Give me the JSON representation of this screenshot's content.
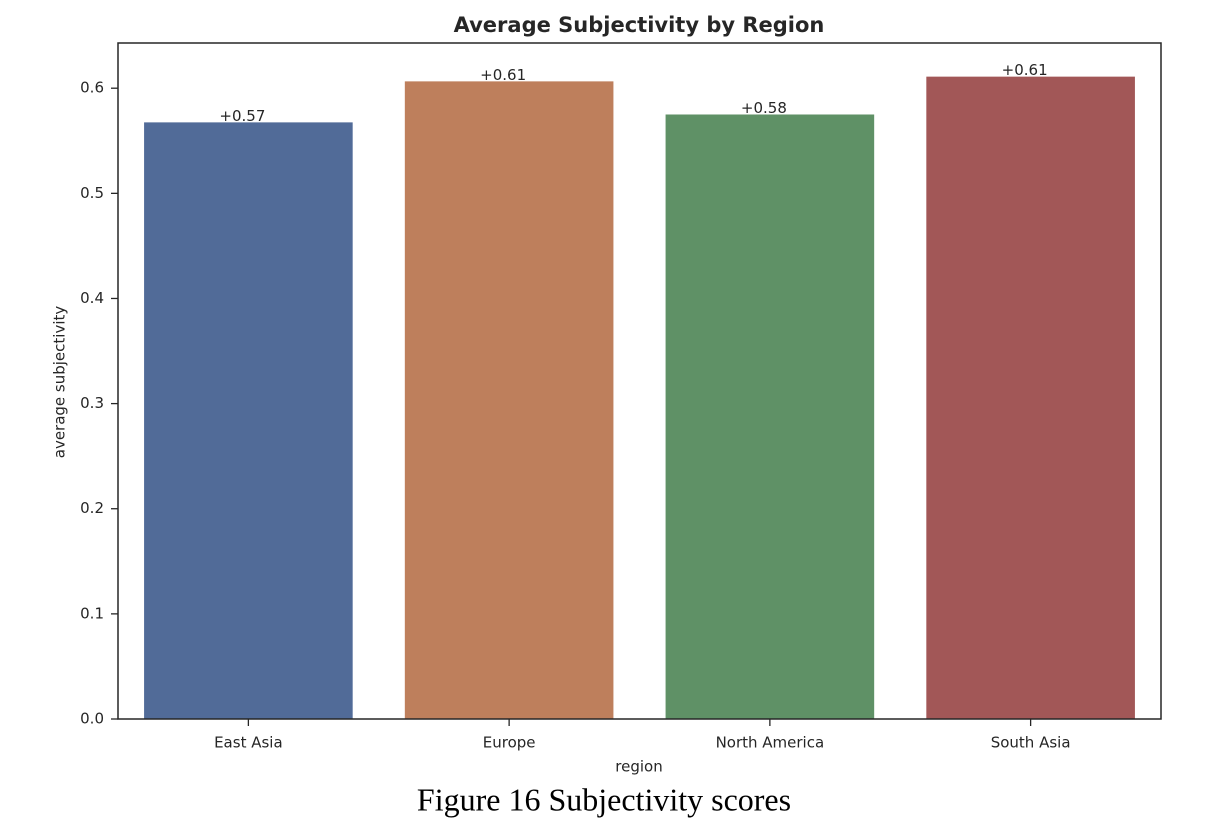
{
  "chart_data": {
    "type": "bar",
    "title": "Average Subjectivity by Region",
    "x_label": "region",
    "y_label": "average subjectivity",
    "categories": [
      "East Asia",
      "Europe",
      "North America",
      "South Asia"
    ],
    "values": [
      0.5675,
      0.6065,
      0.575,
      0.611
    ],
    "value_labels": [
      "+0.57",
      "+0.61",
      "+0.58",
      "+0.61"
    ],
    "colors": [
      "#516b98",
      "#be7f5c",
      "#5f9166",
      "#a25757"
    ],
    "ylim": [
      0,
      0.643
    ],
    "yticks": [
      {
        "value": 0,
        "label": "0.0"
      },
      0.1,
      0.2,
      0.3,
      0.4,
      0.5,
      0.6
    ],
    "grid": false
  },
  "caption": "Figure 16 Subjectivity scores"
}
